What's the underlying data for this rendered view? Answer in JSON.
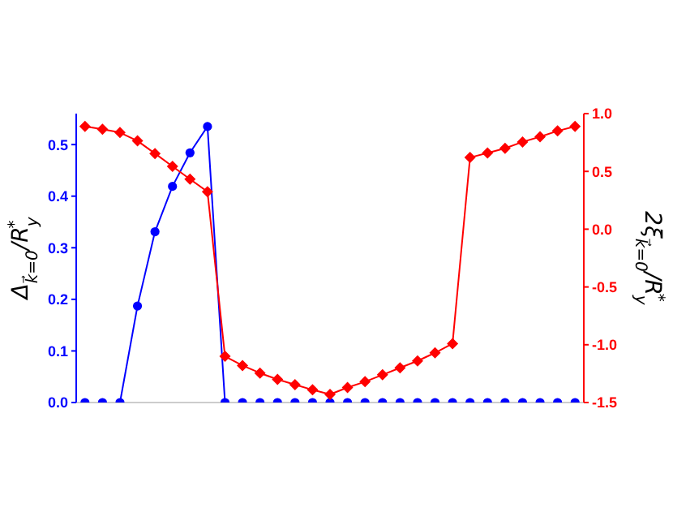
{
  "chart_data": {
    "type": "line",
    "ylabel": "Δ$_{k⃗=0}$/R$_{y}$$^{*}$",
    "y2label": "2ξ$_{k⃗=0}$/R$_{y}$$^{*}$",
    "categories": [
      null,
      null,
      null,
      null,
      null,
      null,
      null,
      null,
      null,
      null,
      null,
      null,
      null,
      null,
      null,
      null,
      null,
      null,
      null,
      null,
      null,
      null,
      null,
      null,
      null,
      null,
      null,
      null,
      null
    ],
    "tick_labels": "y",
    "ylim": [
      0,
      0.56
    ],
    "yticks": [
      {
        "value": 0,
        "label": "0.0"
      },
      0.1,
      0.2,
      0.3,
      0.4,
      0.5
    ],
    "y2lim": [
      -1.5,
      1.0
    ],
    "y2ticks": [
      -1.5,
      {
        "value": -1,
        "label": "-1.0"
      },
      -0.5,
      {
        "value": 0,
        "label": "0.0"
      },
      0.5,
      {
        "value": 1,
        "label": "1.0"
      }
    ],
    "marker": "circle",
    "series": [
      {
        "color": "#0000ff",
        "values": [
          0,
          0,
          0,
          0.187,
          0.331,
          0.419,
          0.484,
          0.535,
          0,
          0,
          0,
          0,
          0,
          0,
          0,
          0,
          0,
          0,
          0,
          0,
          0,
          0,
          0,
          0,
          0,
          0,
          0,
          0,
          0
        ]
      },
      {
        "color": "#ff0000",
        "marker": "diamond",
        "axis": "y2",
        "values": [
          0.89,
          0.865,
          0.836,
          0.764,
          0.655,
          0.544,
          0.433,
          0.324,
          -1.1,
          -1.18,
          -1.245,
          -1.3,
          -1.345,
          -1.39,
          -1.43,
          -1.37,
          -1.32,
          -1.26,
          -1.2,
          -1.14,
          -1.07,
          -0.99,
          0.62,
          0.66,
          0.7,
          0.755,
          0.8,
          0.85,
          0.89
        ]
      }
    ]
  }
}
